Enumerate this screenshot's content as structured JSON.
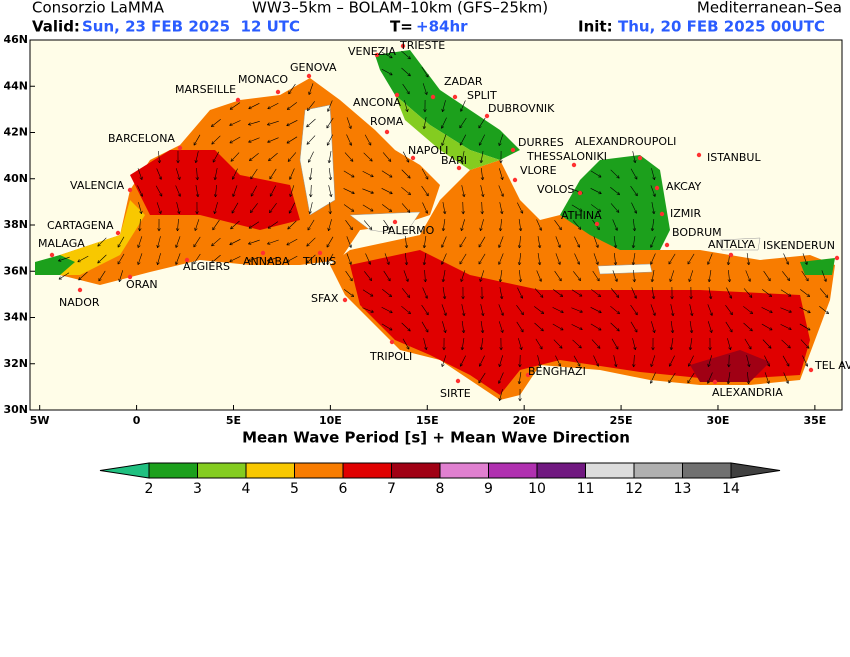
{
  "header": {
    "org": "Consorzio LaMMA",
    "model": "WW3–5km – BOLAM–10km (GFS–25km)",
    "region": "Mediterranean–Sea",
    "valid_label": "Valid:",
    "valid": "Sun, 23 FEB 2025  12 UTC",
    "t_label": "T=",
    "t": "+84hr",
    "init_label": "Init:",
    "init": "Thu, 20 FEB 2025 00UTC"
  },
  "map": {
    "title": "Mean Wave Period [s] + Mean Wave Direction",
    "xlim": [
      -5.5,
      36.4
    ],
    "ylim": [
      30,
      46
    ],
    "xticks": [
      {
        "value": -5,
        "label": "5W"
      },
      0,
      {
        "value": 5,
        "label": "5E"
      },
      {
        "value": 10,
        "label": "10E"
      },
      {
        "value": 15,
        "label": "15E"
      },
      {
        "value": 20,
        "label": "20E"
      },
      {
        "value": 25,
        "label": "25E"
      },
      {
        "value": 30,
        "label": "30E"
      },
      {
        "value": 35,
        "label": "35E"
      }
    ],
    "yticks": [
      {
        "value": 30,
        "label": "30N"
      },
      {
        "value": 32,
        "label": "32N"
      },
      {
        "value": 34,
        "label": "34N"
      },
      {
        "value": 36,
        "label": "36N"
      },
      {
        "value": 38,
        "label": "38N"
      },
      {
        "value": 40,
        "label": "40N"
      },
      {
        "value": 42,
        "label": "42N"
      },
      {
        "value": 44,
        "label": "44N"
      },
      {
        "value": 46,
        "label": "46N"
      }
    ],
    "cities": [
      "VENEZIA",
      "TRIESTE",
      "GENOVA",
      "MONACO",
      "MARSEILLE",
      "ZADAR",
      "SPLIT",
      "ANCONA",
      "DUBROVNIK",
      "ROMA",
      "BARCELONA",
      "DURRES",
      "ALEXANDROUPOLI",
      "NAPOLI",
      "THESSALONIKI",
      "ISTANBUL",
      "BARI",
      "VLORE",
      "VALENCIA",
      "AKCAY",
      "VOLOS",
      "IZMIR",
      "ATHINA",
      "CARTAGENA",
      "PALERMO",
      "BODRUM",
      "ANTALYA",
      "ISKENDERUN",
      "MALAGA",
      "ALGIERS",
      "ANNABA",
      "TUNIS",
      "ORAN",
      "NADOR",
      "SFAX",
      "TEL AVIV",
      "TRIPOLI",
      "BENGHAZI",
      "SIRTE",
      "ALEXANDRIA"
    ]
  },
  "colorbar": {
    "levels": [
      2,
      3,
      4,
      5,
      6,
      7,
      8,
      9,
      10,
      11,
      12,
      13,
      14
    ],
    "colors": [
      "#20c080",
      "#1ca01c",
      "#84cc20",
      "#f8c800",
      "#f87c00",
      "#e00000",
      "#a00014",
      "#e080d0",
      "#b030b0",
      "#701880",
      "#dcdcdc",
      "#b0b0b0",
      "#707070",
      "#404040"
    ]
  }
}
